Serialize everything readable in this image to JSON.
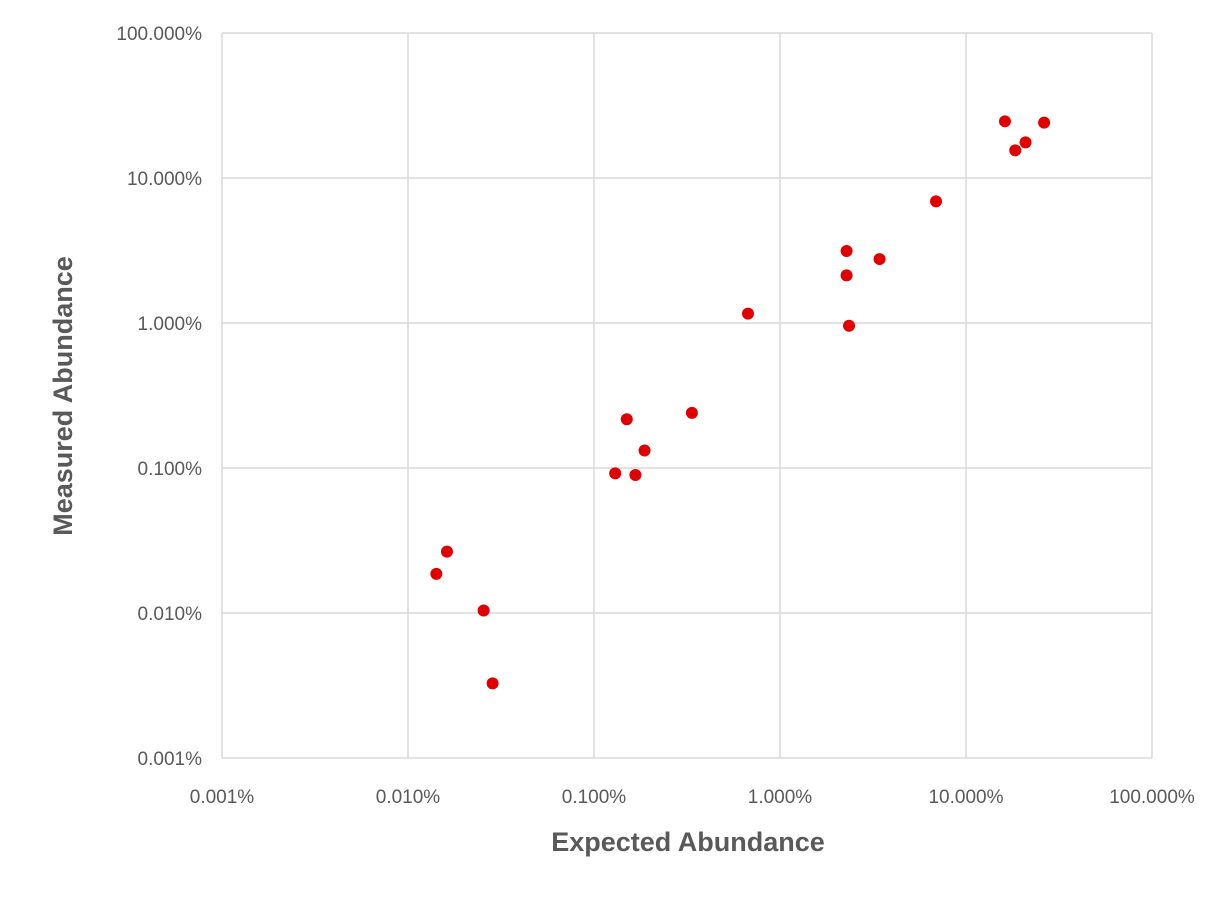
{
  "chart_data": {
    "type": "scatter",
    "xlabel": "Expected Abundance",
    "ylabel": "Measured Abundance",
    "x_scale": "log",
    "y_scale": "log",
    "xlim": [
      1e-05,
      1
    ],
    "ylim": [
      1e-05,
      1
    ],
    "x_ticks": [
      1e-05,
      0.0001,
      0.001,
      0.01,
      0.1,
      1
    ],
    "x_tick_labels": [
      "0.001%",
      "0.010%",
      "0.100%",
      "1.000%",
      "10.000%",
      "100.000%"
    ],
    "y_ticks": [
      1e-05,
      0.0001,
      0.001,
      0.01,
      0.1,
      1
    ],
    "y_tick_labels": [
      "0.001%",
      "0.010%",
      "0.100%",
      "1.000%",
      "10.000%",
      "100.000%"
    ],
    "grid": true,
    "marker_color": "#e00000",
    "points": [
      {
        "x": 0.000142,
        "y": 0.000186
      },
      {
        "x": 0.000162,
        "y": 0.000265
      },
      {
        "x": 0.000255,
        "y": 0.000104
      },
      {
        "x": 0.000285,
        "y": 3.27e-05
      },
      {
        "x": 0.0013,
        "y": 0.000918
      },
      {
        "x": 0.0015,
        "y": 0.00217
      },
      {
        "x": 0.00167,
        "y": 0.000895
      },
      {
        "x": 0.00187,
        "y": 0.00132
      },
      {
        "x": 0.00336,
        "y": 0.0024
      },
      {
        "x": 0.00673,
        "y": 0.0116
      },
      {
        "x": 0.0228,
        "y": 0.0314
      },
      {
        "x": 0.0228,
        "y": 0.0213
      },
      {
        "x": 0.0235,
        "y": 0.00958
      },
      {
        "x": 0.0343,
        "y": 0.0276
      },
      {
        "x": 0.069,
        "y": 0.069
      },
      {
        "x": 0.162,
        "y": 0.246
      },
      {
        "x": 0.184,
        "y": 0.155
      },
      {
        "x": 0.209,
        "y": 0.176
      },
      {
        "x": 0.263,
        "y": 0.241
      }
    ]
  }
}
